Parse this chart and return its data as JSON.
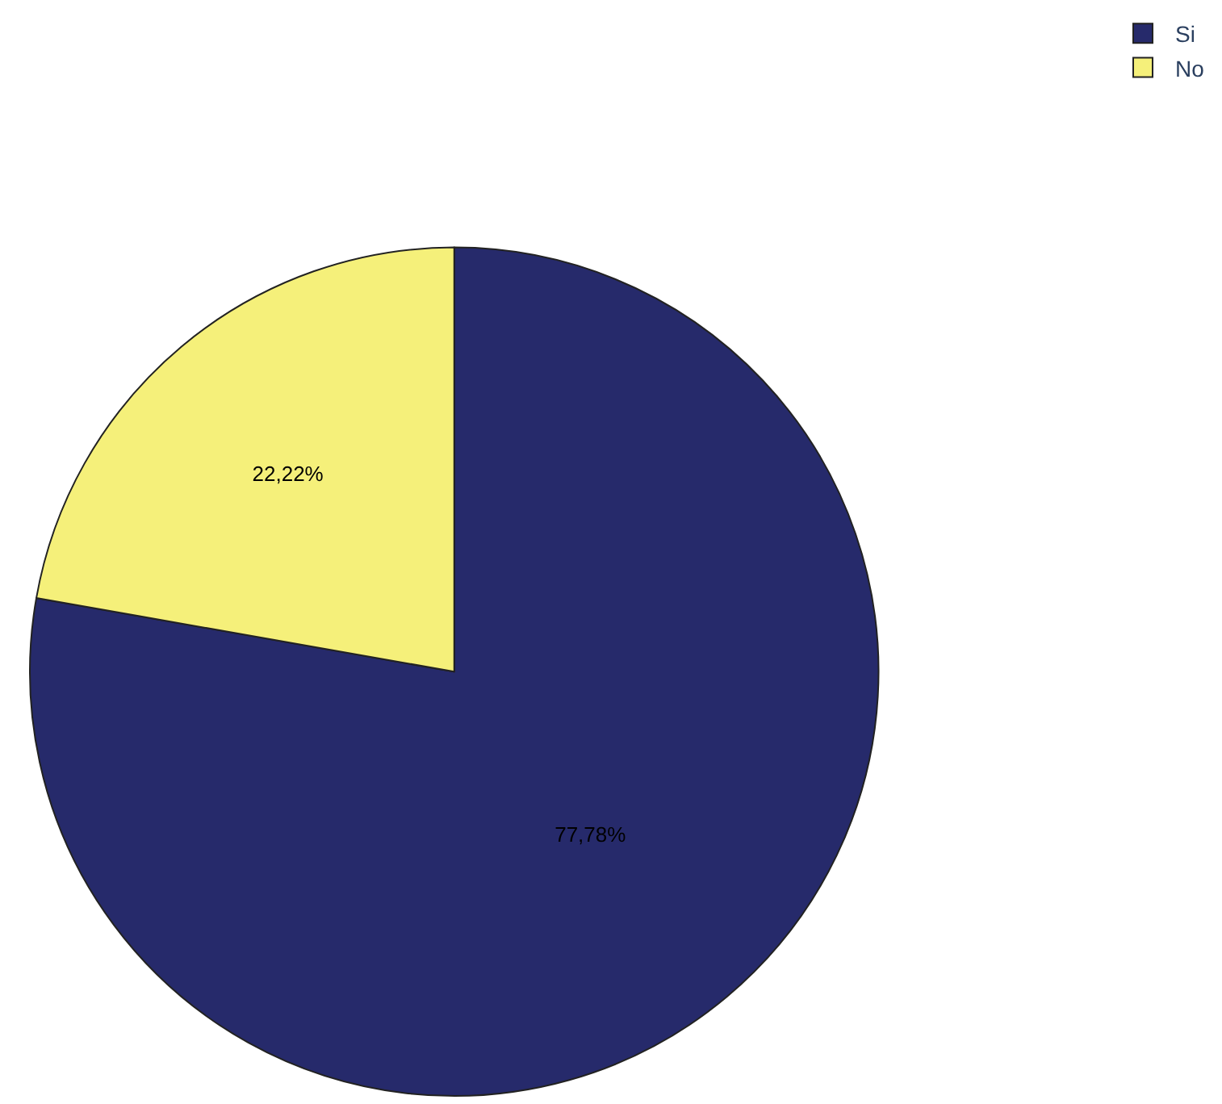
{
  "chart_data": {
    "type": "pie",
    "categories": [
      "Si",
      "No"
    ],
    "values": [
      77.78,
      22.22
    ],
    "colors": [
      "#262a6b",
      "#f5f07a"
    ],
    "value_labels": [
      "77,78%",
      "22,22%"
    ],
    "legend": "top right"
  }
}
